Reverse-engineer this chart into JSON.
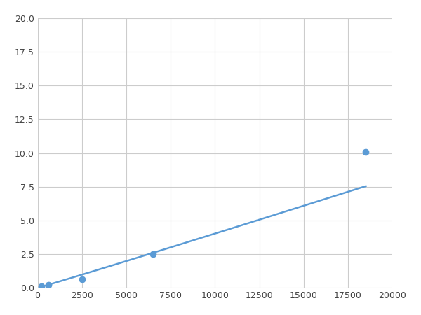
{
  "x": [
    200,
    600,
    2500,
    6500,
    18500
  ],
  "y": [
    0.1,
    0.2,
    0.65,
    2.5,
    10.1
  ],
  "line_color": "#5B9BD5",
  "marker_color": "#5B9BD5",
  "marker_size": 6,
  "xlim": [
    0,
    20000
  ],
  "ylim": [
    0,
    20.0
  ],
  "xticks": [
    0,
    2500,
    5000,
    7500,
    10000,
    12500,
    15000,
    17500,
    20000
  ],
  "yticks": [
    0.0,
    2.5,
    5.0,
    7.5,
    10.0,
    12.5,
    15.0,
    17.5,
    20.0
  ],
  "grid": true,
  "background_color": "#ffffff",
  "line_width": 1.8
}
